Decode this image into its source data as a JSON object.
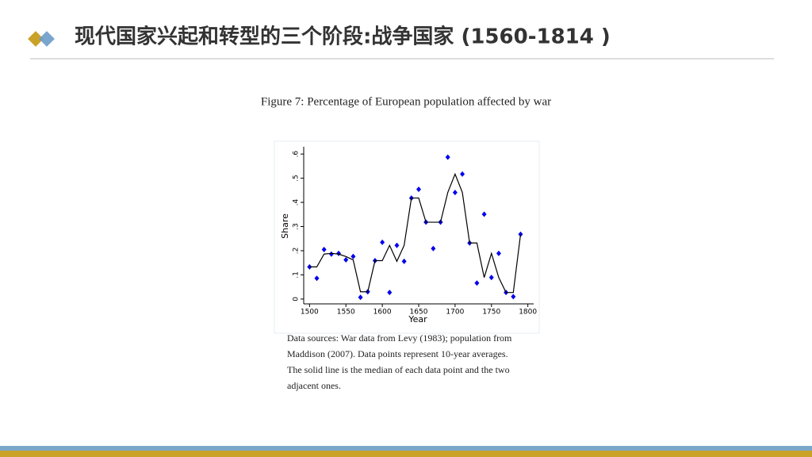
{
  "header": {
    "title": "现代国家兴起和转型的三个阶段:战争国家 (1560-1814 )"
  },
  "chart_data": {
    "type": "scatter",
    "title": "Figure 7: Percentage of European population affected by war",
    "x_label": "Year",
    "y_label": "Share",
    "x": [
      1500,
      1510,
      1520,
      1530,
      1540,
      1550,
      1560,
      1570,
      1580,
      1590,
      1600,
      1610,
      1620,
      1630,
      1640,
      1650,
      1660,
      1670,
      1680,
      1690,
      1700,
      1710,
      1720,
      1730,
      1740,
      1750,
      1760,
      1770,
      1780,
      1790
    ],
    "series": [
      {
        "mode": "markers",
        "color": "#0000ee",
        "values": [
          0.133,
          0.086,
          0.205,
          0.186,
          0.189,
          0.162,
          0.176,
          0.007,
          0.03,
          0.159,
          0.235,
          0.027,
          0.222,
          0.156,
          0.418,
          0.454,
          0.318,
          0.209,
          0.318,
          0.587,
          0.441,
          0.517,
          0.232,
          0.066,
          0.351,
          0.089,
          0.189,
          0.027,
          0.01,
          0.268
        ]
      },
      {
        "mode": "line",
        "color": "#000000",
        "values": [
          0.133,
          0.133,
          0.186,
          0.189,
          0.186,
          0.176,
          0.162,
          0.03,
          0.03,
          0.159,
          0.159,
          0.222,
          0.156,
          0.222,
          0.418,
          0.418,
          0.318,
          0.318,
          0.318,
          0.441,
          0.517,
          0.441,
          0.232,
          0.232,
          0.089,
          0.189,
          0.089,
          0.027,
          0.027,
          0.268
        ]
      }
    ],
    "xlim": [
      1492,
      1808
    ],
    "ylim": [
      -0.02,
      0.63
    ],
    "xticks": [
      1500,
      1550,
      1600,
      1650,
      1700,
      1750,
      1800
    ],
    "yticks": [
      0,
      {
        "value": 0.1,
        "label": ".1"
      },
      {
        "value": 0.2,
        "label": ".2"
      },
      {
        "value": 0.3,
        "label": ".3"
      },
      {
        "value": 0.4,
        "label": ".4"
      },
      {
        "value": 0.5,
        "label": ".5"
      },
      {
        "value": 0.6,
        "label": ".6"
      }
    ],
    "notes": [
      "Data sources: War data from Levy (1983); population from",
      "Maddison (2007).  Data points represent 10-year averages.",
      "The solid line is the median of each data point and the two",
      "adjacent ones."
    ]
  }
}
